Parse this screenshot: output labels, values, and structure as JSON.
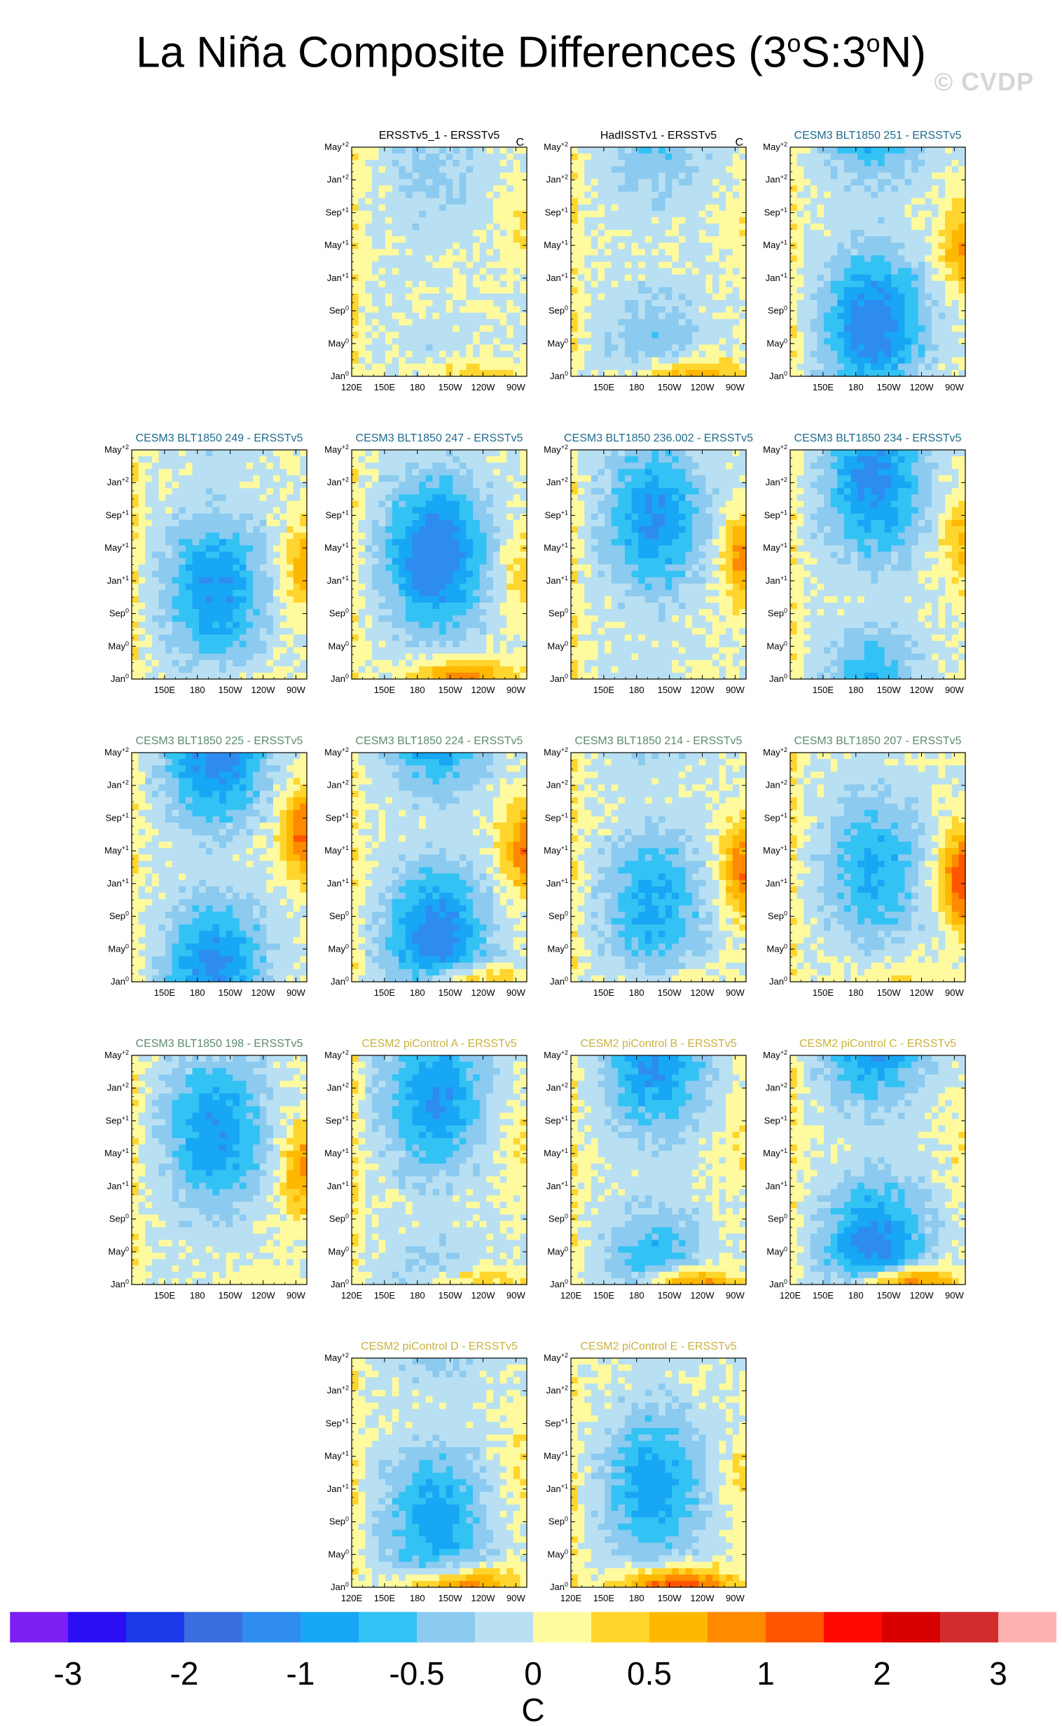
{
  "header": {
    "title": "La Niña Composite Differences (3",
    "title_deg1": "o",
    "title_mid": "S:3",
    "title_deg2": "o",
    "title_end": "N)",
    "watermark": "© CVDP"
  },
  "chart_data": {
    "type": "heatmap",
    "y_tick_labels": [
      {
        "base": "May",
        "sup": "+2"
      },
      {
        "base": "Jan",
        "sup": "+2"
      },
      {
        "base": "Sep",
        "sup": "+1"
      },
      {
        "base": "May",
        "sup": "+1"
      },
      {
        "base": "Jan",
        "sup": "+1"
      },
      {
        "base": "Sep",
        "sup": "0"
      },
      {
        "base": "May",
        "sup": "0"
      },
      {
        "base": "Jan",
        "sup": "0"
      }
    ],
    "x_tick_labels": [
      "120E",
      "150E",
      "180",
      "150W",
      "120W",
      "90W"
    ],
    "panels": [
      {
        "title": "ERSSTv5_1 - ERSSTv5",
        "units": "C",
        "title_color": "#000000",
        "row": 0,
        "col": 1,
        "show_120E": true,
        "amp": 0.3,
        "warm_bottom": 0.6,
        "warm_east": 0.3
      },
      {
        "title": "HadISSTv1 - ERSSTv5",
        "units": "C",
        "title_color": "#000000",
        "row": 0,
        "col": 2,
        "show_120E": false,
        "amp": 0.5,
        "warm_bottom": 1.0,
        "warm_east": 0.2
      },
      {
        "title": "CESM3 BLT1850 251 - ERSSTv5",
        "units": "",
        "title_color": "#1e6a8c",
        "row": 0,
        "col": 3,
        "show_120E": false,
        "amp": 1.2,
        "warm_bottom": 0.1,
        "warm_east": 0.8
      },
      {
        "title": "CESM3 BLT1850 249 - ERSSTv5",
        "units": "",
        "title_color": "#1e6a8c",
        "row": 1,
        "col": 0,
        "show_120E": false,
        "amp": 1.0,
        "warm_bottom": 0.2,
        "warm_east": 0.7
      },
      {
        "title": "CESM3 BLT1850 247 - ERSSTv5",
        "units": "",
        "title_color": "#1e6a8c",
        "row": 1,
        "col": 1,
        "show_120E": false,
        "amp": 1.3,
        "warm_bottom": 1.0,
        "warm_east": 0.5
      },
      {
        "title": "CESM3 BLT1850 236.002 - ERSSTv5",
        "units": "",
        "title_color": "#1e6a8c",
        "row": 1,
        "col": 2,
        "show_120E": false,
        "amp": 1.0,
        "warm_bottom": 0.3,
        "warm_east": 0.9
      },
      {
        "title": "CESM3 BLT1850 234 - ERSSTv5",
        "units": "",
        "title_color": "#1e6a8c",
        "row": 1,
        "col": 3,
        "show_120E": false,
        "amp": 1.1,
        "warm_bottom": 0.2,
        "warm_east": 0.6
      },
      {
        "title": "CESM3 BLT1850 225 - ERSSTv5",
        "units": "",
        "title_color": "#5e8a6e",
        "row": 2,
        "col": 0,
        "show_120E": false,
        "amp": 1.2,
        "warm_bottom": 0.2,
        "warm_east": 1.1
      },
      {
        "title": "CESM3 BLT1850 224 - ERSSTv5",
        "units": "",
        "title_color": "#5e8a6e",
        "row": 2,
        "col": 1,
        "show_120E": false,
        "amp": 1.2,
        "warm_bottom": 0.9,
        "warm_east": 1.0
      },
      {
        "title": "CESM3 BLT1850 214 - ERSSTv5",
        "units": "",
        "title_color": "#5e8a6e",
        "row": 2,
        "col": 2,
        "show_120E": false,
        "amp": 0.8,
        "warm_bottom": 0.3,
        "warm_east": 1.0
      },
      {
        "title": "CESM3 BLT1850 207 - ERSSTv5",
        "units": "",
        "title_color": "#5e8a6e",
        "row": 2,
        "col": 3,
        "show_120E": false,
        "amp": 0.8,
        "warm_bottom": 0.3,
        "warm_east": 1.3
      },
      {
        "title": "CESM3 BLT1850 198 - ERSSTv5",
        "units": "",
        "title_color": "#5e8a6e",
        "row": 3,
        "col": 0,
        "show_120E": false,
        "amp": 1.0,
        "warm_bottom": 0.4,
        "warm_east": 0.9
      },
      {
        "title": "CESM2 piControl A - ERSSTv5",
        "units": "",
        "title_color": "#c9b23c",
        "row": 3,
        "col": 1,
        "show_120E": true,
        "amp": 1.0,
        "warm_bottom": 0.8,
        "warm_east": 0.3
      },
      {
        "title": "CESM2 piControl B - ERSSTv5",
        "units": "",
        "title_color": "#c9b23c",
        "row": 3,
        "col": 2,
        "show_120E": true,
        "amp": 1.0,
        "warm_bottom": 1.3,
        "warm_east": 0.3
      },
      {
        "title": "CESM2 piControl C - ERSSTv5",
        "units": "",
        "title_color": "#c9b23c",
        "row": 3,
        "col": 3,
        "show_120E": true,
        "amp": 1.2,
        "warm_bottom": 1.5,
        "warm_east": 0.2
      },
      {
        "title": "CESM2 piControl D - ERSSTv5",
        "units": "",
        "title_color": "#c9b23c",
        "row": 4,
        "col": 1,
        "show_120E": true,
        "amp": 0.9,
        "warm_bottom": 1.2,
        "warm_east": 0.3
      },
      {
        "title": "CESM2 piControl E - ERSSTv5",
        "units": "",
        "title_color": "#c9b23c",
        "row": 4,
        "col": 2,
        "show_120E": true,
        "amp": 0.9,
        "warm_bottom": 1.4,
        "warm_east": 0.3
      }
    ],
    "colorbar": {
      "colors": [
        "#7b1ff2",
        "#2a0ff2",
        "#1a3ae8",
        "#3a6ee0",
        "#2e8cf0",
        "#17a7f4",
        "#33c2f4",
        "#8ccaf0",
        "#b8e0f2",
        "#fffa9e",
        "#ffd52e",
        "#ffb800",
        "#ff8a00",
        "#ff5500",
        "#ff0a00",
        "#d90000",
        "#d32c2c",
        "#ffb0b0"
      ],
      "levels": [
        -3,
        -2.5,
        -2,
        -1.5,
        -1,
        -0.75,
        -0.5,
        -0.25,
        0,
        0.25,
        0.5,
        0.75,
        1,
        1.5,
        2,
        2.5,
        3
      ],
      "labels": [
        "-3",
        "-2",
        "-1",
        "-0.5",
        "0",
        "0.5",
        "1",
        "2",
        "3"
      ],
      "label": "C"
    }
  }
}
